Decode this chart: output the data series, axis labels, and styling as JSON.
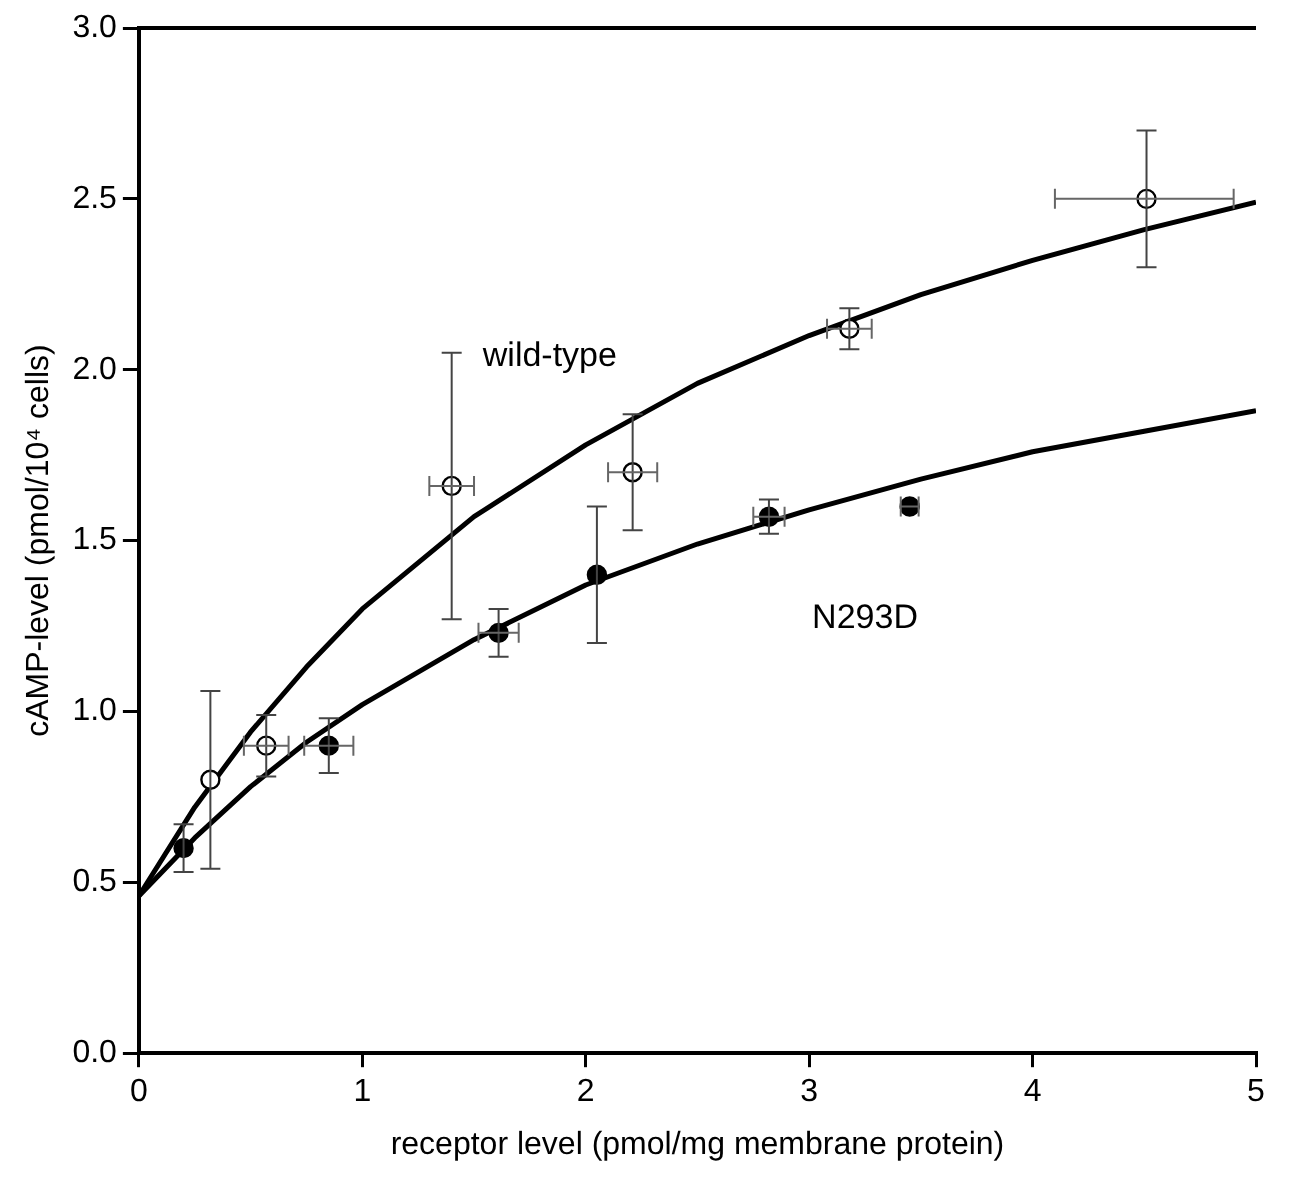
{
  "chart_data": {
    "type": "scatter",
    "xlabel": "receptor level (pmol/mg membrane protein)",
    "ylabel": "cAMP-level (pmol/10⁴ cells)",
    "xlim": [
      0,
      5
    ],
    "ylim": [
      0,
      3
    ],
    "xticks": [
      0,
      1,
      2,
      3,
      4,
      5
    ],
    "yticks": [
      {
        "value": 0,
        "label": "0.0"
      },
      {
        "value": 0.5,
        "label": "0.5"
      },
      {
        "value": 1,
        "label": "1.0"
      },
      {
        "value": 1.5,
        "label": "1.5"
      },
      {
        "value": 2,
        "label": "2.0"
      },
      {
        "value": 2.5,
        "label": "2.5"
      },
      {
        "value": 3,
        "label": "3.0"
      }
    ],
    "grid": false,
    "legend": false,
    "marker": "circle",
    "series": [
      {
        "color": "#ffffff",
        "x": [
          0.32,
          0.57,
          1.4,
          2.21,
          3.18,
          4.51
        ],
        "values": [
          0.8,
          0.9,
          1.66,
          1.7,
          2.12,
          2.5
        ],
        "errors": [
          [
            0.54,
            1.06
          ],
          [
            0.81,
            0.99
          ],
          [
            1.27,
            2.05
          ],
          [
            1.53,
            1.87
          ],
          [
            2.06,
            2.18
          ],
          [
            2.3,
            2.7
          ]
        ],
        "xerrors": [
          null,
          0.1,
          0.1,
          0.11,
          0.1,
          [
            4.1,
            4.9
          ]
        ]
      },
      {
        "color": "#000000",
        "x": [
          0.2,
          0.85,
          1.61,
          2.05,
          2.82,
          3.45
        ],
        "values": [
          0.6,
          0.9,
          1.23,
          1.4,
          1.57,
          1.6
        ],
        "errors": [
          [
            0.53,
            0.67
          ],
          [
            0.82,
            0.98
          ],
          [
            1.16,
            1.3
          ],
          [
            1.2,
            1.6
          ],
          [
            1.52,
            1.62
          ],
          null
        ],
        "xerrors": [
          null,
          0.11,
          0.09,
          null,
          0.07,
          0.04
        ]
      },
      {
        "type": "line",
        "name": "wild-type",
        "color": "#000000",
        "marker": "none",
        "x": [
          0,
          0.25,
          0.5,
          0.75,
          1,
          1.5,
          2,
          2.5,
          3,
          3.5,
          4,
          4.5,
          5
        ],
        "values": [
          0.46,
          0.72,
          0.94,
          1.13,
          1.3,
          1.57,
          1.78,
          1.96,
          2.1,
          2.22,
          2.32,
          2.41,
          2.49
        ]
      },
      {
        "type": "line",
        "name": "N293D",
        "color": "#000000",
        "marker": "none",
        "x": [
          0,
          0.25,
          0.5,
          0.75,
          1,
          1.5,
          2,
          2.5,
          3,
          3.5,
          4,
          4.5,
          5
        ],
        "values": [
          0.46,
          0.63,
          0.78,
          0.91,
          1.02,
          1.21,
          1.37,
          1.49,
          1.59,
          1.68,
          1.76,
          1.82,
          1.88
        ]
      }
    ]
  }
}
